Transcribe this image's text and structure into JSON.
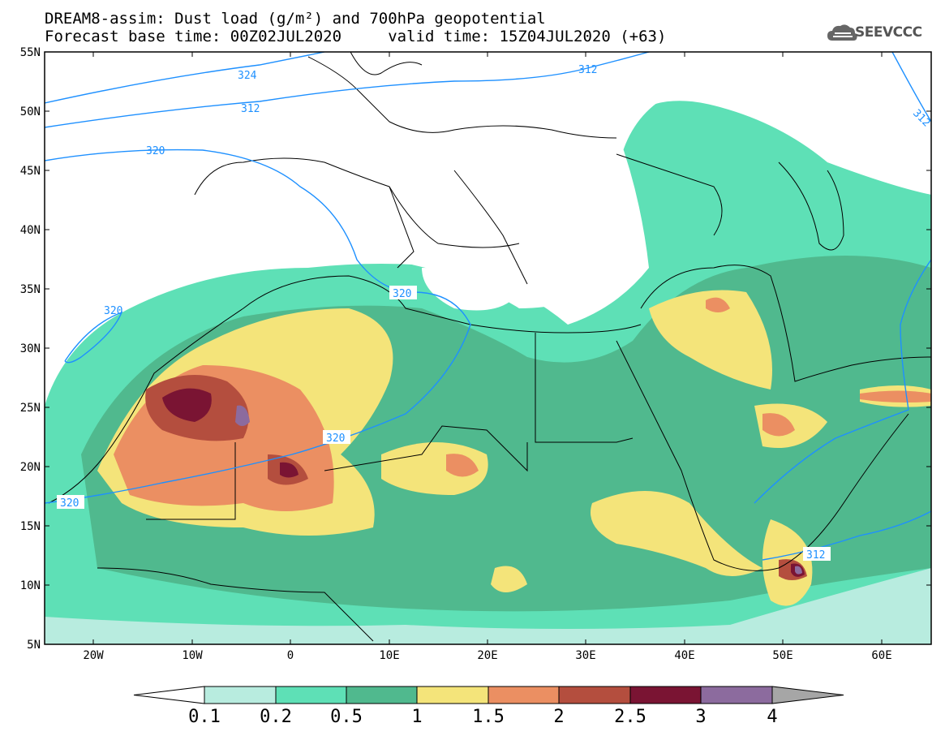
{
  "title": {
    "line1": "DREAM8-assim: Dust load (g/m²) and 700hPa geopotential",
    "line2": "Forecast base time: 00Z02JUL2020     valid time: 15Z04JUL2020 (+63)"
  },
  "logo": {
    "text": "SEEVCCC",
    "icon": "cloud-icon"
  },
  "axes": {
    "lat_labels": [
      "55N",
      "50N",
      "45N",
      "40N",
      "35N",
      "30N",
      "25N",
      "20N",
      "15N",
      "10N",
      "5N"
    ],
    "lon_labels": [
      "20W",
      "10W",
      "0",
      "10E",
      "20E",
      "30E",
      "40E",
      "50E",
      "60E"
    ]
  },
  "contours": {
    "labels": [
      "324",
      "312",
      "320",
      "320",
      "320",
      "320",
      "312",
      "312"
    ]
  },
  "colorbar": {
    "levels": [
      "0.1",
      "0.2",
      "0.5",
      "1",
      "1.5",
      "2",
      "2.5",
      "3",
      "4"
    ],
    "colors": [
      "#ffffff",
      "#b8ecdf",
      "#5ee0b6",
      "#50b98e",
      "#f4e47a",
      "#eb8f62",
      "#b44e3e",
      "#7a1433",
      "#8c6b9e",
      "#a6a6a6"
    ]
  },
  "palette": {
    "contour_line": "#1e90ff",
    "coast": "#000000"
  }
}
